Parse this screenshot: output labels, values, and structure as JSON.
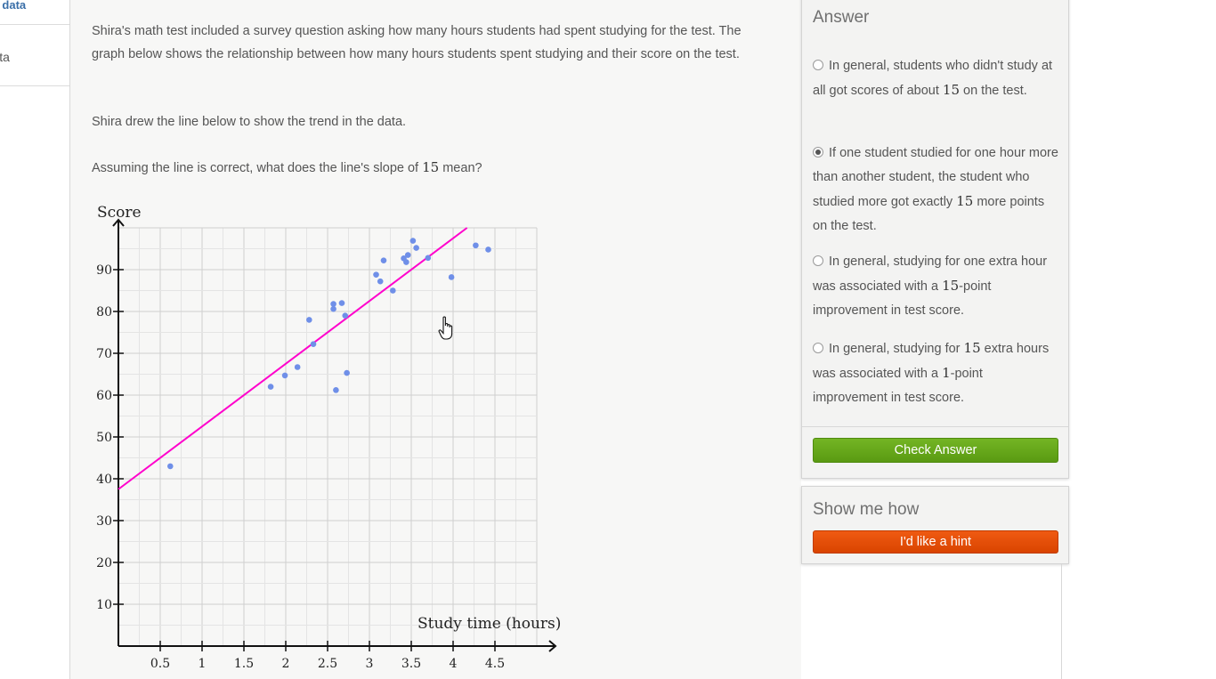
{
  "sidebar": {
    "link_partial": "ate data",
    "item_partial": "e data"
  },
  "problem": {
    "paragraph1": "Shira's math test included a survey question asking how many hours students had spent studying for the test. The graph below shows the relationship between how many hours students spent studying and their score on the test.",
    "paragraph2": "Shira drew the line below to show the trend in the data.",
    "question_before": "Assuming the line is correct, what does the line's slope of ",
    "question_value": "15",
    "question_after": " mean?"
  },
  "chart_data": {
    "type": "scatter",
    "xlabel": "Study time (hours)",
    "ylabel": "Score",
    "xlim": [
      0,
      5
    ],
    "ylim": [
      0,
      100
    ],
    "x_ticks": [
      "0.5",
      "1",
      "1.5",
      "2",
      "2.5",
      "3",
      "3.5",
      "4",
      "4.5"
    ],
    "y_ticks": [
      "10",
      "20",
      "30",
      "40",
      "50",
      "60",
      "70",
      "80",
      "90"
    ],
    "grid": true,
    "points": [
      [
        0.62,
        43
      ],
      [
        1.82,
        62
      ],
      [
        1.99,
        64.7
      ],
      [
        2.14,
        66.7
      ],
      [
        2.33,
        72.2
      ],
      [
        2.28,
        78
      ],
      [
        2.57,
        81.8
      ],
      [
        2.57,
        80.6
      ],
      [
        2.6,
        61.2
      ],
      [
        2.67,
        82
      ],
      [
        2.71,
        79
      ],
      [
        2.73,
        65.3
      ],
      [
        3.08,
        88.8
      ],
      [
        3.13,
        87.2
      ],
      [
        3.17,
        92.2
      ],
      [
        3.28,
        85
      ],
      [
        3.41,
        92.7
      ],
      [
        3.44,
        91.8
      ],
      [
        3.46,
        93.5
      ],
      [
        3.52,
        96.9
      ],
      [
        3.56,
        95.2
      ],
      [
        3.7,
        92.8
      ],
      [
        3.98,
        88.2
      ],
      [
        4.27,
        95.8
      ],
      [
        4.42,
        94.8
      ]
    ],
    "trend_line": {
      "slope": 15,
      "intercept": 37.5,
      "color": "#ff00cc"
    },
    "point_color": "#6f8fe8"
  },
  "answer": {
    "title": "Answer",
    "choices": [
      {
        "before": "In general, students who didn't study at all got scores of about ",
        "value": "15",
        "after": " on the test.",
        "selected": false
      },
      {
        "before": "If one student studied for one hour more than another student, the student who studied more got exactly ",
        "value": "15",
        "after": " more points on the test.",
        "selected": true
      },
      {
        "before": "In general, studying for one extra hour was associated with a ",
        "value": "15",
        "after": "-point improvement in test score.",
        "selected": false
      },
      {
        "before": "In general, studying for ",
        "value": "15",
        "middle": " extra hours was associated with a ",
        "value2": "1",
        "after": "-point improvement in test score.",
        "selected": false
      }
    ],
    "check_button": "Check Answer"
  },
  "hint": {
    "title": "Show me how",
    "button": "I'd like a hint"
  },
  "colors": {
    "check_green": "#62a31a",
    "hint_orange": "#e44d08"
  }
}
